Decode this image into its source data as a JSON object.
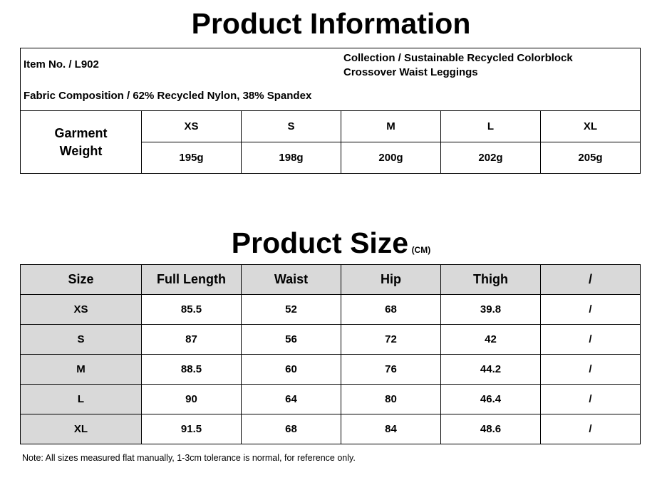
{
  "header": {
    "title": "Product Information"
  },
  "info": {
    "item_no": "Item No. / L902",
    "collection": "Collection / Sustainable Recycled Colorblock Crossover Waist Leggings",
    "fabric": "Fabric Composition / 62% Recycled Nylon, 38% Spandex"
  },
  "weight_table": {
    "label": "Garment Weight",
    "sizes": [
      "XS",
      "S",
      "M",
      "L",
      "XL"
    ],
    "weights": [
      "195g",
      "198g",
      "200g",
      "202g",
      "205g"
    ]
  },
  "size_section": {
    "title": "Product Size",
    "unit": "(CM)"
  },
  "size_table": {
    "columns": [
      "Size",
      "Full Length",
      "Waist",
      "Hip",
      "Thigh",
      "/"
    ],
    "rows": [
      [
        "XS",
        85.5,
        52,
        68,
        39.8,
        "/"
      ],
      [
        "S",
        87,
        56,
        72,
        42,
        "/"
      ],
      [
        "M",
        88.5,
        60,
        76,
        44.2,
        "/"
      ],
      [
        "L",
        90,
        64,
        80,
        46.4,
        "/"
      ],
      [
        "XL",
        91.5,
        68,
        84,
        48.6,
        "/"
      ]
    ]
  },
  "note": "Note: All sizes measured flat manually, 1-3cm tolerance is normal, for reference only."
}
